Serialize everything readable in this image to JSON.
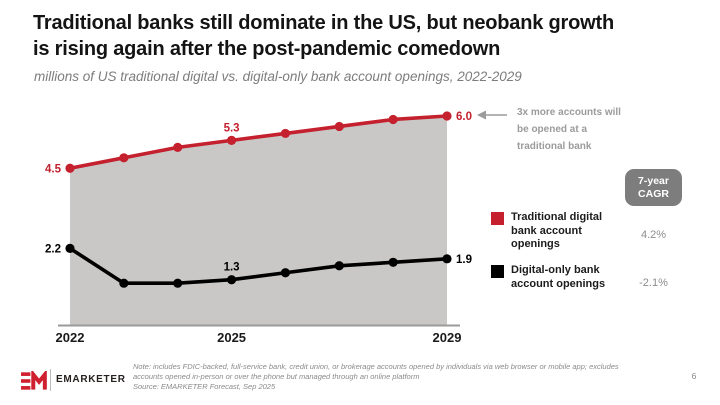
{
  "slide": {
    "title_line1": "Traditional banks still dominate in the US, but neobank growth",
    "title_line2": "is rising again after the post-pandemic comedown",
    "subtitle": "millions of US traditional digital vs. digital-only bank account openings, 2022-2029",
    "page_number": "6"
  },
  "chart_data": {
    "type": "line",
    "title": "millions of US traditional digital vs. digital-only bank account openings, 2022-2029",
    "x": [
      2022,
      2023,
      2024,
      2025,
      2026,
      2027,
      2028,
      2029
    ],
    "x_tick_labels": [
      "2022",
      "2025",
      "2029"
    ],
    "ylim": [
      0,
      6.5
    ],
    "grid": false,
    "legend_position": "right",
    "series": [
      {
        "name": "Traditional digital bank account openings",
        "color": "#c4202e",
        "area_fill": "#c9c8c6",
        "values": [
          4.5,
          4.8,
          5.1,
          5.3,
          5.5,
          5.7,
          5.9,
          6.0
        ],
        "point_labels": [
          {
            "index": 0,
            "text": "4.5"
          },
          {
            "index": 3,
            "text": "5.3"
          },
          {
            "index": 7,
            "text": "6.0"
          }
        ],
        "cagr": "4.2%"
      },
      {
        "name": "Digital-only bank account openings",
        "color": "#000000",
        "values": [
          2.2,
          1.2,
          1.2,
          1.3,
          1.5,
          1.7,
          1.8,
          1.9
        ],
        "point_labels": [
          {
            "index": 0,
            "text": "2.2"
          },
          {
            "index": 3,
            "text": "1.3"
          },
          {
            "index": 7,
            "text": "1.9"
          }
        ],
        "cagr": "-2.1%"
      }
    ],
    "annotation": {
      "text": "3x more accounts will be opened at a traditional bank"
    },
    "cagr_header": "7-year CAGR"
  },
  "footer": {
    "logo_mark": "EM",
    "logo_text": "EMARKETER",
    "note_line1": "Note: includes FDIC-backed, full-service bank, credit union, or brokerage accounts opened by individuals via web browser or mobile app; excludes",
    "note_line2": "accounts opened in-person or over the phone but managed through an online platform",
    "note_line3": "Source: EMARKETER Forecast, Sep 2025"
  }
}
